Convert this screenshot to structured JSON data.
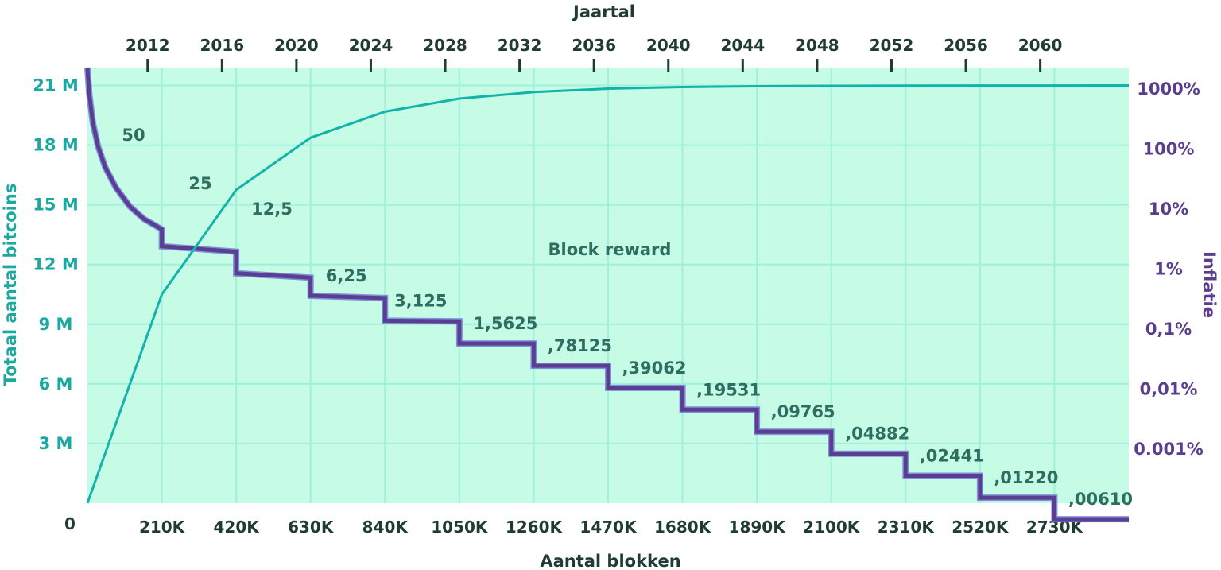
{
  "chart_data": {
    "type": "line",
    "top_axis_title": "Jaartal",
    "top_ticks": [
      "2012",
      "2016",
      "2020",
      "2024",
      "2028",
      "2032",
      "2036",
      "2040",
      "2044",
      "2048",
      "2052",
      "2056",
      "2060"
    ],
    "top_tick_blocks": [
      170000,
      380000,
      590000,
      800000,
      1010000,
      1220000,
      1430000,
      1640000,
      1850000,
      2060000,
      2270000,
      2480000,
      2690000
    ],
    "xlabel": "Aantal blokken",
    "x_ticks": [
      "210K",
      "420K",
      "630K",
      "840K",
      "1050K",
      "1260K",
      "1470K",
      "1680K",
      "1890K",
      "2100K",
      "2310K",
      "2520K",
      "2730K"
    ],
    "x_tick_values": [
      210000,
      420000,
      630000,
      840000,
      1050000,
      1260000,
      1470000,
      1680000,
      1890000,
      2100000,
      2310000,
      2520000,
      2730000
    ],
    "xlim": [
      0,
      2940000
    ],
    "ylabel_left": "Totaal aantal bitcoins",
    "y_left_ticks": [
      "0",
      "3 M",
      "6 M",
      "9 M",
      "12 M",
      "15 M",
      "18 M",
      "21 M"
    ],
    "y_left_values": [
      0,
      3,
      6,
      9,
      12,
      15,
      18,
      21
    ],
    "ylim_left": [
      0,
      21.9
    ],
    "ylabel_right": "Inflatie",
    "y_right_ticks": [
      "1000%",
      "100%",
      "10%",
      "1%",
      "0,1%",
      "0,01%",
      "0.001%"
    ],
    "y_right_values": [
      1000,
      100,
      10,
      1,
      0.1,
      0.01,
      0.001
    ],
    "y_right_scale": "log",
    "series": [
      {
        "name": "Totaal aantal bitcoins",
        "axis": "left",
        "color": "#12b3aa",
        "x": [
          0,
          210000,
          420000,
          630000,
          840000,
          1050000,
          1260000,
          1470000,
          1680000,
          1890000,
          2100000,
          2310000,
          2520000,
          2730000,
          2940000
        ],
        "y": [
          0,
          10.5,
          15.75,
          18.375,
          19.6875,
          20.34,
          20.67,
          20.84,
          20.92,
          20.96,
          20.98,
          20.99,
          20.995,
          20.998,
          21.0
        ]
      },
      {
        "name": "Inflatie",
        "axis": "right",
        "color": "#5b3e92",
        "steps": [
          {
            "x0": 210000,
            "x1": 420000,
            "start": 2.4,
            "end": 1.95
          },
          {
            "x0": 420000,
            "x1": 630000,
            "start": 0.85,
            "end": 0.72
          },
          {
            "x0": 630000,
            "x1": 840000,
            "start": 0.36,
            "end": 0.33
          },
          {
            "x0": 840000,
            "x1": 1050000,
            "start": 0.138,
            "end": 0.135
          },
          {
            "x0": 1050000,
            "x1": 1260000,
            "start": 0.0575,
            "end": 0.0575
          },
          {
            "x0": 1260000,
            "x1": 1470000,
            "start": 0.0245,
            "end": 0.0245
          },
          {
            "x0": 1470000,
            "x1": 1680000,
            "start": 0.0105,
            "end": 0.0105
          },
          {
            "x0": 1680000,
            "x1": 1890000,
            "start": 0.00455,
            "end": 0.00455
          },
          {
            "x0": 1890000,
            "x1": 2100000,
            "start": 0.00195,
            "end": 0.00195
          },
          {
            "x0": 2100000,
            "x1": 2310000,
            "start": 0.00084,
            "end": 0.00084
          },
          {
            "x0": 2310000,
            "x1": 2520000,
            "start": 0.00036,
            "end": 0.00036
          },
          {
            "x0": 2520000,
            "x1": 2730000,
            "start": 0.000155,
            "end": 0.000155
          },
          {
            "x0": 2730000,
            "x1": 2940000,
            "start": 6.8e-05,
            "end": 6.8e-05
          }
        ],
        "first_epoch_x": [
          0,
          5000,
          15000,
          30000,
          50000,
          80000,
          120000,
          160000,
          210000
        ],
        "first_epoch_y": [
          3000,
          850,
          280,
          110,
          50,
          23,
          11,
          6.8,
          4.6
        ]
      }
    ],
    "annotation": "Block reward",
    "rewards": [
      "50",
      "25",
      "12,5",
      "6,25",
      "3,125",
      "1,5625",
      ",78125",
      ",39062",
      ",19531",
      ",09765",
      ",04882",
      ",02441",
      ",01220",
      ",00610"
    ],
    "grid": true,
    "colors": {
      "background": "#c6fbe6",
      "grid": "#9ff0dc",
      "supply_line": "#12b3aa",
      "inflation_line": "#5b3e92",
      "inflation_line_edge": "#7f92d8",
      "left_axis_text": "#1aa8a0",
      "right_axis_text": "#5a3d8f",
      "reward_text": "#2e6e60",
      "dark_text": "#1f3b33"
    }
  }
}
